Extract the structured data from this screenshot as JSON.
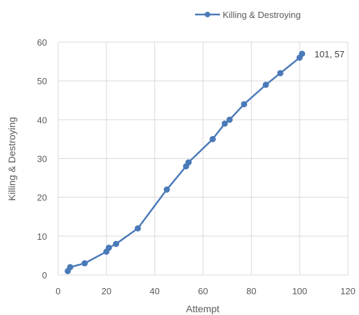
{
  "chart_data": {
    "type": "scatter",
    "title": "",
    "xlabel": "Attempt",
    "ylabel": "Killing & Destroying",
    "xlim": [
      0,
      120
    ],
    "ylim": [
      0,
      60
    ],
    "xticks": [
      0,
      20,
      40,
      60,
      80,
      100,
      120
    ],
    "yticks": [
      0,
      10,
      20,
      30,
      40,
      50,
      60
    ],
    "grid": true,
    "legend_position": "top-right",
    "series": [
      {
        "name": "Killing & Destroying",
        "color": "#4a7ab8",
        "points": [
          {
            "x": 4,
            "y": 1
          },
          {
            "x": 5,
            "y": 2
          },
          {
            "x": 11,
            "y": 3
          },
          {
            "x": 20,
            "y": 6
          },
          {
            "x": 21,
            "y": 7
          },
          {
            "x": 24,
            "y": 8
          },
          {
            "x": 33,
            "y": 12
          },
          {
            "x": 45,
            "y": 22
          },
          {
            "x": 53,
            "y": 28
          },
          {
            "x": 54,
            "y": 29
          },
          {
            "x": 64,
            "y": 35
          },
          {
            "x": 69,
            "y": 39
          },
          {
            "x": 71,
            "y": 40
          },
          {
            "x": 77,
            "y": 44
          },
          {
            "x": 86,
            "y": 49
          },
          {
            "x": 92,
            "y": 52
          },
          {
            "x": 100,
            "y": 56
          },
          {
            "x": 101,
            "y": 57
          }
        ]
      }
    ],
    "annotations": [
      {
        "x": 101,
        "y": 57,
        "text": "101, 57"
      }
    ]
  }
}
